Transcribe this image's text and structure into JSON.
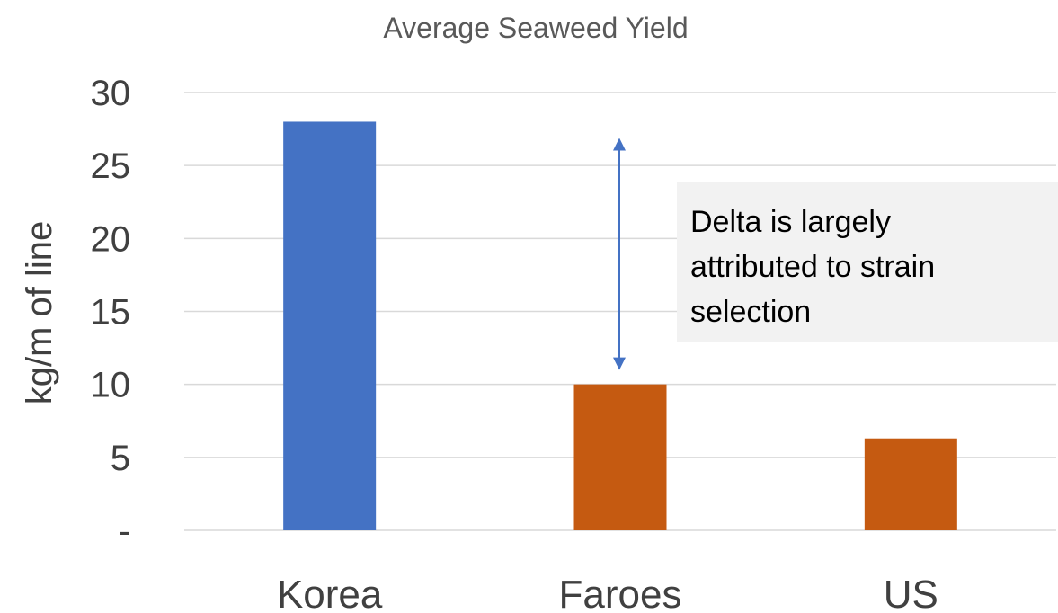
{
  "chart_data": {
    "type": "bar",
    "title": "Average  Seaweed Yield",
    "ylabel": "kg/m of line",
    "xlabel": "",
    "categories": [
      "Korea",
      "Faroes",
      "US"
    ],
    "values": [
      28,
      10,
      6.3
    ],
    "bar_colors": [
      "#4472C4",
      "#C55A11",
      "#C55A11"
    ],
    "ylim": [
      0,
      30
    ],
    "yticks": [
      0,
      5,
      10,
      15,
      20,
      25,
      30
    ],
    "ytick_labels": [
      "-",
      "5",
      "10",
      "15",
      "20",
      "25",
      "30"
    ],
    "grid": true,
    "annotation": {
      "text_lines": [
        "Delta is largely",
        "attributed to strain",
        "selection"
      ],
      "arrow_from": 10,
      "arrow_to": 28,
      "arrow_color": "#4472C4",
      "box_color": "#F2F2F2"
    },
    "gridline_color": "#D9D9D9"
  }
}
